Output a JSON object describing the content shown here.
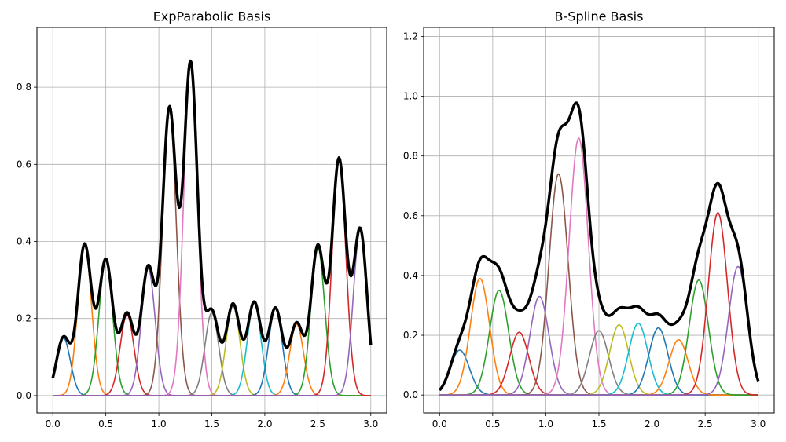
{
  "colors": {
    "tab10": [
      "#1f77b4",
      "#ff7f0e",
      "#2ca02c",
      "#d62728",
      "#9467bd",
      "#8c564b",
      "#e377c2",
      "#7f7f7f",
      "#bcbd22",
      "#17becf"
    ],
    "sum": "#000000",
    "grid": "#b0b0b0"
  },
  "chart_data": [
    {
      "type": "line",
      "title": "ExpParabolic Basis",
      "xlabel": "",
      "ylabel": "",
      "xlim": [
        -0.15,
        3.15
      ],
      "ylim": [
        -0.045,
        0.955
      ],
      "xticks": [
        0.0,
        0.5,
        1.0,
        1.5,
        2.0,
        2.5,
        3.0
      ],
      "xtick_labels": [
        "0.0",
        "0.5",
        "1.0",
        "1.5",
        "2.0",
        "2.5",
        "3.0"
      ],
      "yticks": [
        0.0,
        0.2,
        0.4,
        0.6,
        0.8
      ],
      "ytick_labels": [
        "0.0",
        "0.2",
        "0.4",
        "0.6",
        "0.8"
      ],
      "grid": true,
      "x_range": [
        0,
        3
      ],
      "bump_width": 0.065,
      "series": [
        {
          "center": 0.1,
          "peak": 0.15
        },
        {
          "center": 0.3,
          "peak": 0.39
        },
        {
          "center": 0.5,
          "peak": 0.35
        },
        {
          "center": 0.7,
          "peak": 0.21
        },
        {
          "center": 0.9,
          "peak": 0.33
        },
        {
          "center": 1.1,
          "peak": 0.74
        },
        {
          "center": 1.3,
          "peak": 0.86
        },
        {
          "center": 1.5,
          "peak": 0.215
        },
        {
          "center": 1.7,
          "peak": 0.235
        },
        {
          "center": 1.9,
          "peak": 0.24
        },
        {
          "center": 2.1,
          "peak": 0.225
        },
        {
          "center": 2.3,
          "peak": 0.185
        },
        {
          "center": 2.5,
          "peak": 0.385
        },
        {
          "center": 2.7,
          "peak": 0.61
        },
        {
          "center": 2.9,
          "peak": 0.43
        }
      ],
      "sum_series": true
    },
    {
      "type": "line",
      "title": "B-Spline Basis",
      "xlabel": "",
      "ylabel": "",
      "xlim": [
        -0.15,
        3.15
      ],
      "ylim": [
        -0.06,
        1.23
      ],
      "xticks": [
        0.0,
        0.5,
        1.0,
        1.5,
        2.0,
        2.5,
        3.0
      ],
      "xtick_labels": [
        "0.0",
        "0.5",
        "1.0",
        "1.5",
        "2.0",
        "2.5",
        "3.0"
      ],
      "yticks": [
        0.0,
        0.2,
        0.4,
        0.6,
        0.8,
        1.0,
        1.2
      ],
      "ytick_labels": [
        "0.0",
        "0.2",
        "0.4",
        "0.6",
        "0.8",
        "1.0",
        "1.2"
      ],
      "grid": true,
      "x_range": [
        0,
        3
      ],
      "bump_width": 0.09,
      "series": [
        {
          "center": 0.19,
          "peak": 0.15
        },
        {
          "center": 0.38,
          "peak": 0.39
        },
        {
          "center": 0.56,
          "peak": 0.35
        },
        {
          "center": 0.75,
          "peak": 0.21
        },
        {
          "center": 0.94,
          "peak": 0.33
        },
        {
          "center": 1.12,
          "peak": 0.74
        },
        {
          "center": 1.31,
          "peak": 0.86
        },
        {
          "center": 1.5,
          "peak": 0.215
        },
        {
          "center": 1.69,
          "peak": 0.235
        },
        {
          "center": 1.87,
          "peak": 0.24
        },
        {
          "center": 2.06,
          "peak": 0.225
        },
        {
          "center": 2.25,
          "peak": 0.185
        },
        {
          "center": 2.44,
          "peak": 0.385
        },
        {
          "center": 2.62,
          "peak": 0.61
        },
        {
          "center": 2.81,
          "peak": 0.43
        }
      ],
      "sum_series": true
    }
  ]
}
